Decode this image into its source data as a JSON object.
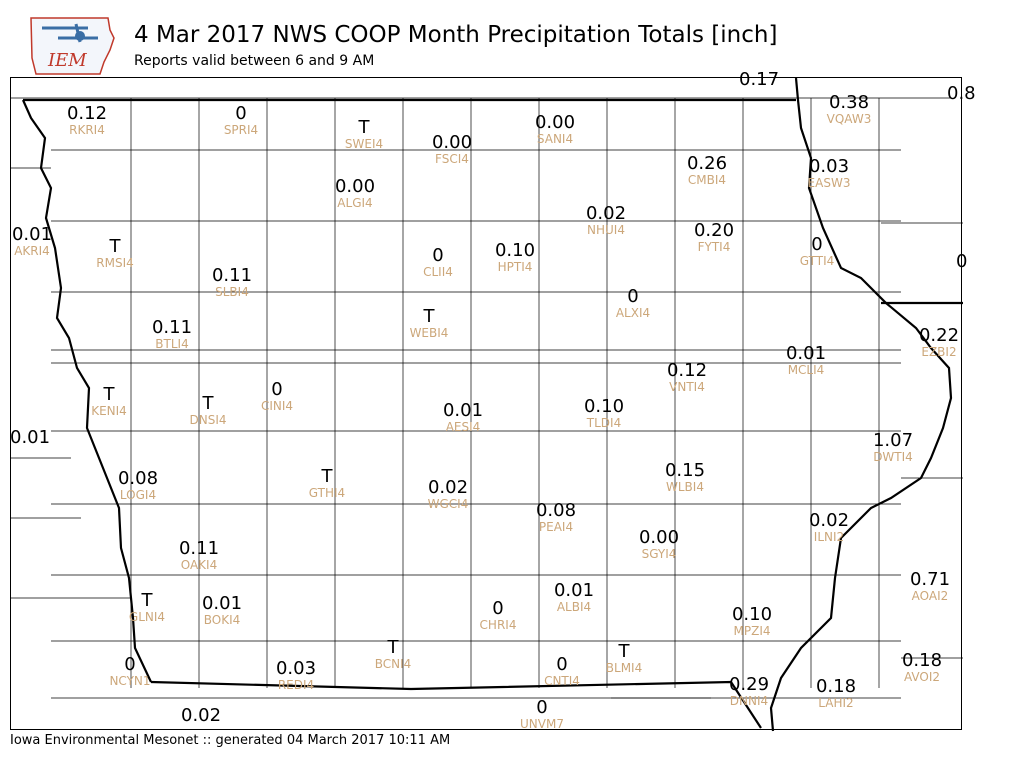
{
  "header": {
    "title": "4 Mar 2017 NWS COOP Month Precipitation Totals [inch]",
    "subtitle": "Reports valid between 6 and 9 AM",
    "logo_text": "IEM"
  },
  "footer": {
    "text": "Iowa Environmental Mesonet :: generated 04 March 2017 10:11 AM"
  },
  "colors": {
    "value_text": "#000000",
    "station_id_text": "#cca77a",
    "county_lines": "#000000",
    "state_border": "#000000",
    "logo_blue": "#3a6ea5",
    "logo_red": "#c0392b"
  },
  "chart_data": {
    "type": "station-map",
    "units": "inch",
    "stations": [
      {
        "id": "RKRI4",
        "value": "0.12"
      },
      {
        "id": "SPRI4",
        "value": "0"
      },
      {
        "id": "SWEI4",
        "value": "T"
      },
      {
        "id": "FSCI4",
        "value": "0.00"
      },
      {
        "id": "SANI4",
        "value": "0.00"
      },
      {
        "id": "VQAW3",
        "value": "0.38"
      },
      {
        "id": "CMBI4",
        "value": "0.26"
      },
      {
        "id": "EASW3",
        "value": "0.03"
      },
      {
        "id": "ALGI4",
        "value": "0.00"
      },
      {
        "id": "NHUI4",
        "value": "0.02"
      },
      {
        "id": "AKRI4",
        "value": "0.01"
      },
      {
        "id": "RMSI4",
        "value": "T"
      },
      {
        "id": "FYTI4",
        "value": "0.20"
      },
      {
        "id": "GTTI4",
        "value": "0"
      },
      {
        "id": "CLII4",
        "value": "0"
      },
      {
        "id": "HPTI4",
        "value": "0.10"
      },
      {
        "id": "SLBI4",
        "value": "0.11"
      },
      {
        "id": "ALXI4",
        "value": "0"
      },
      {
        "id": "WEBI4",
        "value": "T"
      },
      {
        "id": "BTLI4",
        "value": "0.11"
      },
      {
        "id": "EZBI2",
        "value": "0.22"
      },
      {
        "id": "MCLI4",
        "value": "0.01"
      },
      {
        "id": "VNTI4",
        "value": "0.12"
      },
      {
        "id": "KENI4",
        "value": "T"
      },
      {
        "id": "DNSI4",
        "value": "T"
      },
      {
        "id": "CINI4",
        "value": "0"
      },
      {
        "id": "AESI4",
        "value": "0.01"
      },
      {
        "id": "TLDI4",
        "value": "0.10"
      },
      {
        "id": "DWTI4",
        "value": "1.07"
      },
      {
        "id": "WLBI4",
        "value": "0.15"
      },
      {
        "id": "GTHI4",
        "value": "T"
      },
      {
        "id": "LOGI4",
        "value": "0.08"
      },
      {
        "id": "WGCI4",
        "value": "0.02"
      },
      {
        "id": "PEAI4",
        "value": "0.08"
      },
      {
        "id": "SGYI4",
        "value": "0.00"
      },
      {
        "id": "ILNI2",
        "value": "0.02"
      },
      {
        "id": "OAKI4",
        "value": "0.11"
      },
      {
        "id": "AOAI2",
        "value": "0.71"
      },
      {
        "id": "GLNI4",
        "value": "T"
      },
      {
        "id": "BOKI4",
        "value": "0.01"
      },
      {
        "id": "CHRI4",
        "value": "0"
      },
      {
        "id": "ALBI4",
        "value": "0.01"
      },
      {
        "id": "MPZI4",
        "value": "0.10"
      },
      {
        "id": "BCNI4",
        "value": "T"
      },
      {
        "id": "BLMI4",
        "value": "T"
      },
      {
        "id": "NCYN1",
        "value": "0"
      },
      {
        "id": "REDI4",
        "value": "0.03"
      },
      {
        "id": "CNTI4",
        "value": "0"
      },
      {
        "id": "DNNI4",
        "value": "0.29"
      },
      {
        "id": "AVOI2",
        "value": "0.18"
      },
      {
        "id": "LAHI2",
        "value": "0.18"
      },
      {
        "id": "UNVM7",
        "value": "0"
      }
    ],
    "edge_values": [
      "0.17",
      "0.8",
      "0",
      "0.01",
      "0.02"
    ]
  }
}
